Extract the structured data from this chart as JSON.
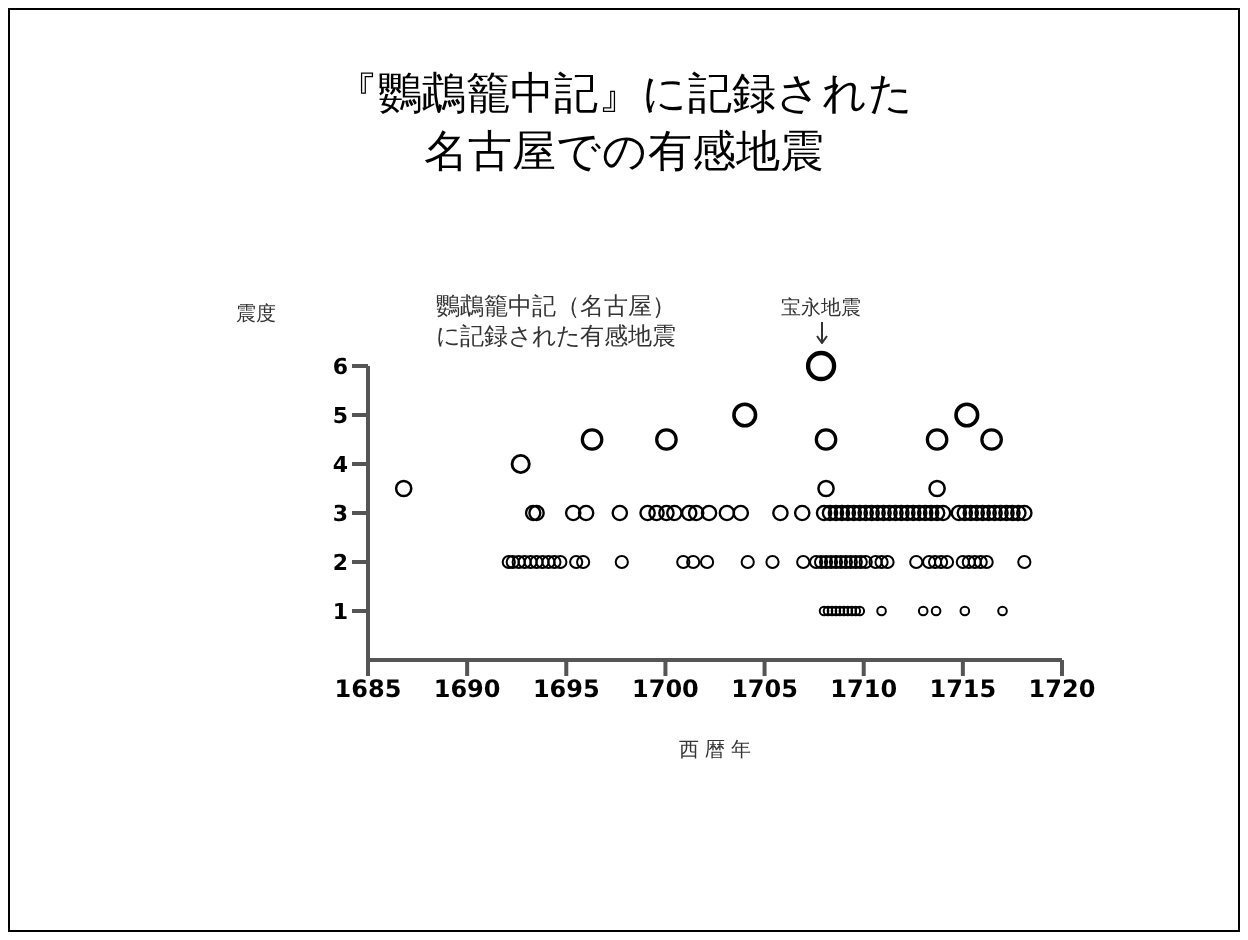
{
  "chart_data": {
    "type": "bubble",
    "title": "『鸚鵡籠中記』に記録された名古屋での有感地震",
    "xlabel": "西 暦 年",
    "ylabel": "震度",
    "annotations": [
      "鸚鵡籠中記（名古屋）に記録された有感地震",
      {
        "text": "宝永地震",
        "x": 1707.85,
        "y": 6
      }
    ],
    "x": [
      1707.85,
      1704.0,
      1715.2,
      1696.3,
      1700.05,
      1708.1,
      1713.7,
      1716.45,
      1692.7,
      1686.8,
      1708.1,
      1713.7,
      1693.33,
      1693.5,
      1695.35,
      1696.0,
      1697.7,
      1699.1,
      1699.55,
      1700.05,
      1700.45,
      1701.2,
      1701.55,
      1702.2,
      1703.1,
      1703.8,
      1705.8,
      1706.9,
      1708.0,
      1708.3,
      1708.6,
      1708.9,
      1709.2,
      1709.5,
      1709.8,
      1710.1,
      1710.4,
      1710.7,
      1711.0,
      1711.3,
      1711.6,
      1711.9,
      1712.2,
      1712.5,
      1712.8,
      1713.1,
      1713.4,
      1713.7,
      1714.0,
      1714.8,
      1715.1,
      1715.4,
      1715.7,
      1716.0,
      1716.3,
      1716.6,
      1716.9,
      1717.2,
      1717.5,
      1717.8,
      1718.1,
      1692.1,
      1692.3,
      1692.6,
      1692.9,
      1693.2,
      1693.5,
      1693.8,
      1694.1,
      1694.4,
      1694.7,
      1695.5,
      1695.85,
      1697.8,
      1700.9,
      1701.4,
      1702.1,
      1704.15,
      1705.4,
      1706.95,
      1707.6,
      1707.85,
      1708.1,
      1708.35,
      1708.6,
      1708.85,
      1709.1,
      1709.35,
      1709.6,
      1709.85,
      1710.1,
      1710.6,
      1710.9,
      1711.2,
      1712.65,
      1713.3,
      1713.6,
      1713.9,
      1714.2,
      1715.0,
      1715.3,
      1715.6,
      1715.9,
      1716.2,
      1718.1,
      1708.0,
      1708.2,
      1708.4,
      1708.6,
      1708.8,
      1709.0,
      1709.2,
      1709.4,
      1709.6,
      1709.8,
      1710.9,
      1713.0,
      1713.65,
      1715.1,
      1717.0
    ],
    "values": [
      6,
      5,
      5,
      4.5,
      4.5,
      4.5,
      4.5,
      4.5,
      4,
      3.5,
      3.5,
      3.5,
      3,
      3,
      3,
      3,
      3,
      3,
      3,
      3,
      3,
      3,
      3,
      3,
      3,
      3,
      3,
      3,
      3,
      3,
      3,
      3,
      3,
      3,
      3,
      3,
      3,
      3,
      3,
      3,
      3,
      3,
      3,
      3,
      3,
      3,
      3,
      3,
      3,
      3,
      3,
      3,
      3,
      3,
      3,
      3,
      3,
      3,
      3,
      3,
      3,
      2,
      2,
      2,
      2,
      2,
      2,
      2,
      2,
      2,
      2,
      2,
      2,
      2,
      2,
      2,
      2,
      2,
      2,
      2,
      2,
      2,
      2,
      2,
      2,
      2,
      2,
      2,
      2,
      2,
      2,
      2,
      2,
      2,
      2,
      2,
      2,
      2,
      2,
      2,
      2,
      2,
      2,
      2,
      2,
      1,
      1,
      1,
      1,
      1,
      1,
      1,
      1,
      1,
      1,
      1,
      1,
      1,
      1,
      1
    ],
    "sizes": [
      1,
      0.69,
      0.69,
      0.56,
      0.56,
      0.56,
      0.56,
      0.56,
      0.44,
      0.34,
      0.34,
      0.34,
      0.3,
      0.3,
      0.3,
      0.3,
      0.3,
      0.3,
      0.3,
      0.3,
      0.3,
      0.3,
      0.3,
      0.3,
      0.3,
      0.3,
      0.3,
      0.3,
      0.3,
      0.3,
      0.3,
      0.3,
      0.3,
      0.3,
      0.3,
      0.3,
      0.3,
      0.3,
      0.3,
      0.3,
      0.3,
      0.3,
      0.3,
      0.3,
      0.3,
      0.3,
      0.3,
      0.3,
      0.3,
      0.3,
      0.3,
      0.3,
      0.3,
      0.3,
      0.3,
      0.3,
      0.3,
      0.3,
      0.3,
      0.3,
      0.3,
      0.22,
      0.22,
      0.22,
      0.22,
      0.22,
      0.22,
      0.22,
      0.22,
      0.22,
      0.22,
      0.22,
      0.22,
      0.22,
      0.22,
      0.22,
      0.22,
      0.22,
      0.22,
      0.22,
      0.22,
      0.22,
      0.22,
      0.22,
      0.22,
      0.22,
      0.22,
      0.22,
      0.22,
      0.22,
      0.22,
      0.22,
      0.22,
      0.22,
      0.22,
      0.22,
      0.22,
      0.22,
      0.22,
      0.22,
      0.22,
      0.22,
      0.22,
      0.22,
      0.22,
      0.11,
      0.11,
      0.11,
      0.11,
      0.11,
      0.11,
      0.11,
      0.11,
      0.11,
      0.11,
      0.11,
      0.11,
      0.11,
      0.11,
      0.11
    ],
    "color": "#000000",
    "marker": "circle",
    "grid": false,
    "legend": false,
    "xlim": [
      1685,
      1720
    ],
    "xticks": [
      1685,
      1690,
      1695,
      1700,
      1705,
      1710,
      1715,
      1720
    ],
    "ylim": [
      0,
      6
    ],
    "yticks": [
      1,
      2,
      3,
      4,
      5,
      6
    ]
  }
}
